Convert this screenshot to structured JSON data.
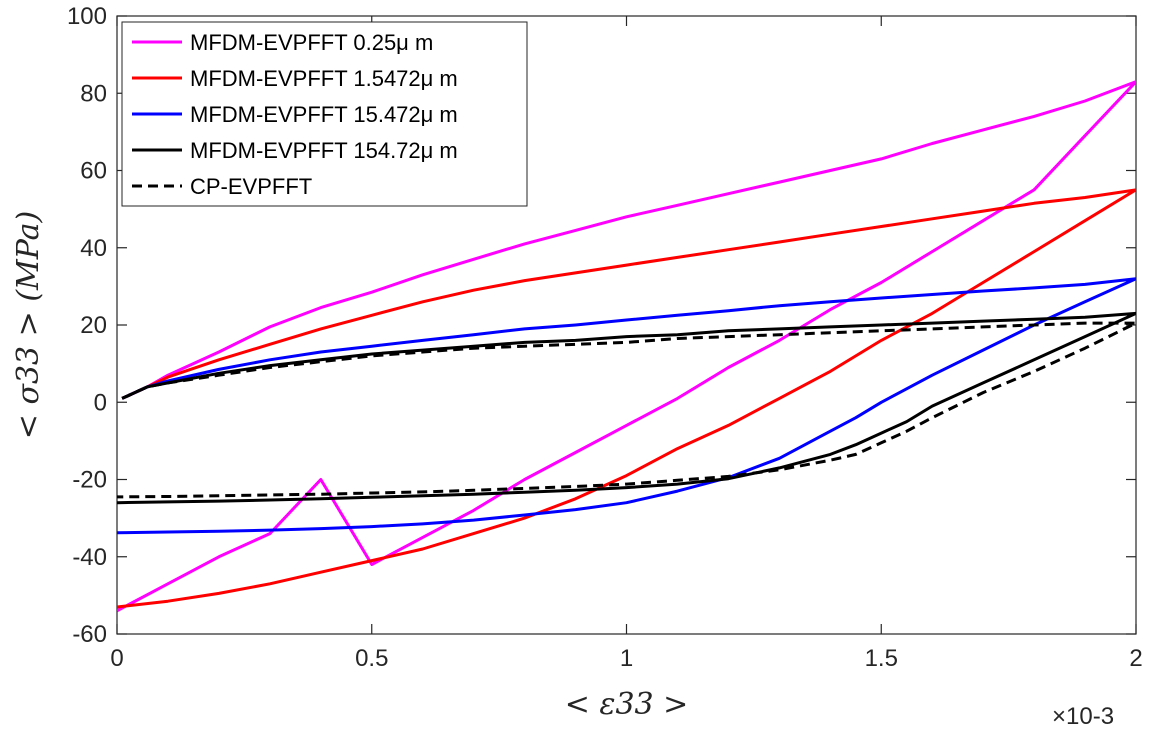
{
  "chart_data": {
    "type": "line",
    "xlabel": "< ε33 >",
    "ylabel": "< σ33 > (MPa)",
    "x_multiplier": "×10-3",
    "xlim": [
      0,
      2
    ],
    "ylim": [
      -60,
      100
    ],
    "x_ticks": [
      "0",
      "0.5",
      "1",
      "1.5",
      "2"
    ],
    "y_ticks": [
      "-60",
      "-40",
      "-20",
      "0",
      "20",
      "40",
      "60",
      "80",
      "100"
    ],
    "legend_position": "top-left",
    "grid": false,
    "series": [
      {
        "name": "MFDM-EVPFFT 0.25μ m",
        "color": "#ff00ff",
        "style": "solid",
        "x": [
          0.01,
          0.06,
          0.1,
          0.2,
          0.3,
          0.4,
          0.5,
          0.6,
          0.7,
          0.8,
          0.9,
          1.0,
          1.1,
          1.2,
          1.3,
          1.4,
          1.5,
          1.6,
          1.7,
          1.8,
          1.9,
          2.0,
          1.9,
          1.8,
          1.7,
          1.6,
          1.5,
          1.4,
          1.3,
          1.2,
          1.1,
          1.0,
          0.9,
          0.8,
          0.7,
          0.6,
          0.5,
          0.4,
          0.3,
          0.2,
          0.1,
          0.0
        ],
        "y": [
          1,
          4,
          7,
          13,
          19.5,
          24.5,
          28.5,
          33,
          37,
          41,
          44.5,
          48,
          51,
          54,
          57,
          60,
          63,
          67,
          70.5,
          74,
          78,
          83,
          69,
          55,
          47,
          39,
          31,
          24,
          16,
          9,
          1,
          -6,
          -13,
          -20,
          -28,
          -35,
          -42,
          -20,
          -34,
          -40,
          -47,
          -54
        ]
      },
      {
        "name": "MFDM-EVPFFT 1.5472μ m",
        "color": "#ff0000",
        "style": "solid",
        "x": [
          0.01,
          0.06,
          0.1,
          0.2,
          0.3,
          0.4,
          0.5,
          0.6,
          0.7,
          0.8,
          0.9,
          1.0,
          1.1,
          1.2,
          1.3,
          1.4,
          1.5,
          1.6,
          1.7,
          1.8,
          1.9,
          2.0,
          1.9,
          1.8,
          1.7,
          1.6,
          1.5,
          1.4,
          1.3,
          1.2,
          1.1,
          1.0,
          0.9,
          0.8,
          0.7,
          0.6,
          0.5,
          0.4,
          0.3,
          0.2,
          0.1,
          0.0
        ],
        "y": [
          1,
          4,
          6.5,
          11,
          15,
          19,
          22.5,
          26,
          29,
          31.5,
          33.5,
          35.5,
          37.5,
          39.5,
          41.5,
          43.5,
          45.5,
          47.5,
          49.5,
          51.5,
          53,
          55,
          47,
          39,
          31,
          23,
          16,
          8,
          1,
          -6,
          -12,
          -19,
          -25,
          -30,
          -34,
          -38,
          -41,
          -44,
          -47,
          -49.5,
          -51.5,
          -53
        ]
      },
      {
        "name": "MFDM-EVPFFT 15.472μ m",
        "color": "#0000ff",
        "style": "solid",
        "x": [
          0.01,
          0.06,
          0.1,
          0.2,
          0.3,
          0.4,
          0.5,
          0.6,
          0.7,
          0.8,
          0.9,
          1.0,
          1.1,
          1.2,
          1.3,
          1.4,
          1.5,
          1.6,
          1.7,
          1.8,
          1.9,
          2.0,
          1.9,
          1.8,
          1.7,
          1.6,
          1.5,
          1.45,
          1.4,
          1.3,
          1.2,
          1.1,
          1.0,
          0.9,
          0.8,
          0.7,
          0.6,
          0.5,
          0.4,
          0.3,
          0.2,
          0.1,
          0.0
        ],
        "y": [
          1,
          4,
          5.5,
          8.5,
          11,
          13,
          14.5,
          16,
          17.5,
          19,
          20,
          21.3,
          22.5,
          23.7,
          25,
          26,
          27,
          27.9,
          28.8,
          29.6,
          30.5,
          32,
          26,
          20,
          13.5,
          7,
          0,
          -4,
          -7.5,
          -14.5,
          -19.5,
          -23,
          -26,
          -27.8,
          -29.2,
          -30.5,
          -31.5,
          -32.2,
          -32.7,
          -33.1,
          -33.4,
          -33.6,
          -33.8
        ]
      },
      {
        "name": "MFDM-EVPFFT 154.72μ m",
        "color": "#000000",
        "style": "solid",
        "x": [
          0.01,
          0.06,
          0.1,
          0.2,
          0.3,
          0.4,
          0.5,
          0.6,
          0.7,
          0.8,
          0.9,
          1.0,
          1.1,
          1.2,
          1.3,
          1.4,
          1.5,
          1.6,
          1.7,
          1.8,
          1.9,
          2.0,
          1.9,
          1.8,
          1.7,
          1.6,
          1.55,
          1.5,
          1.45,
          1.4,
          1.3,
          1.2,
          1.1,
          1.0,
          0.9,
          0.8,
          0.7,
          0.6,
          0.5,
          0.4,
          0.3,
          0.2,
          0.1,
          0.0
        ],
        "y": [
          1,
          4,
          5,
          7.5,
          9.5,
          11,
          12.5,
          13.5,
          14.5,
          15.5,
          16,
          17,
          17.5,
          18.5,
          19,
          19.5,
          20,
          20.5,
          21,
          21.5,
          22,
          23,
          17,
          11,
          5,
          -1,
          -5,
          -8,
          -11,
          -13.5,
          -17,
          -19.8,
          -21.2,
          -22.1,
          -22.8,
          -23.3,
          -23.8,
          -24.2,
          -24.6,
          -25,
          -25.3,
          -25.6,
          -25.8,
          -26
        ]
      },
      {
        "name": "CP-EVPFFT",
        "color": "#000000",
        "style": "dashed",
        "x": [
          0.01,
          0.06,
          0.1,
          0.2,
          0.3,
          0.4,
          0.5,
          0.6,
          0.7,
          0.8,
          0.9,
          1.0,
          1.1,
          1.2,
          1.3,
          1.4,
          1.5,
          1.6,
          1.7,
          1.8,
          1.9,
          2.0,
          1.9,
          1.8,
          1.7,
          1.6,
          1.55,
          1.5,
          1.45,
          1.4,
          1.3,
          1.2,
          1.1,
          1.0,
          0.9,
          0.8,
          0.7,
          0.6,
          0.5,
          0.4,
          0.3,
          0.2,
          0.1,
          0.0
        ],
        "y": [
          1,
          4,
          5,
          7,
          9,
          10.5,
          12,
          13,
          14,
          14.5,
          15,
          15.5,
          16.5,
          17,
          17.5,
          18,
          18.5,
          19,
          19.5,
          20,
          20.5,
          20.5,
          14,
          8,
          2.5,
          -4,
          -7.5,
          -10.5,
          -13.5,
          -15,
          -17.5,
          -19.2,
          -20.2,
          -21.2,
          -21.8,
          -22.3,
          -22.8,
          -23.2,
          -23.5,
          -23.8,
          -24,
          -24.2,
          -24.4,
          -24.5
        ]
      }
    ]
  }
}
